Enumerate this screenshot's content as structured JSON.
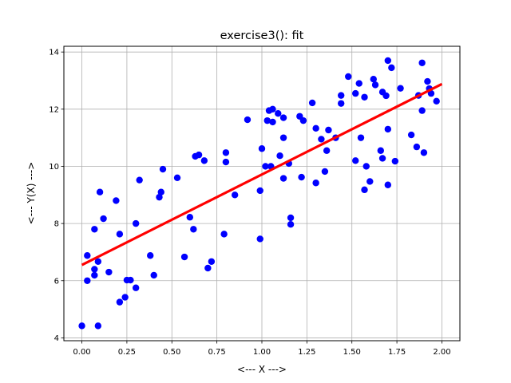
{
  "chart_data": {
    "type": "scatter",
    "title": "exercise3(): fit",
    "xlabel": "<--- X --->",
    "ylabel": "<--- Y(X) --->",
    "xlim": [
      -0.1,
      2.1
    ],
    "ylim": [
      3.9,
      14.2
    ],
    "xticks": [
      0.0,
      0.25,
      0.5,
      0.75,
      1.0,
      1.25,
      1.5,
      1.75,
      2.0
    ],
    "xtick_labels": [
      "0.00",
      "0.25",
      "0.50",
      "0.75",
      "1.00",
      "1.25",
      "1.50",
      "1.75",
      "2.00"
    ],
    "yticks": [
      4,
      6,
      8,
      10,
      12,
      14
    ],
    "ytick_labels": [
      "4",
      "6",
      "8",
      "10",
      "12",
      "14"
    ],
    "grid": true,
    "colors": {
      "points": "#0000ff",
      "fit_line": "#ff0000",
      "grid": "#b0b0b0"
    },
    "series": [
      {
        "type": "scatter",
        "points": [
          [
            0.0,
            4.42
          ],
          [
            0.03,
            6.88
          ],
          [
            0.03,
            6.0
          ],
          [
            0.07,
            6.19
          ],
          [
            0.07,
            6.4
          ],
          [
            0.07,
            7.8
          ],
          [
            0.09,
            4.42
          ],
          [
            0.09,
            6.67
          ],
          [
            0.1,
            9.1
          ],
          [
            0.12,
            8.17
          ],
          [
            0.15,
            6.3
          ],
          [
            0.19,
            8.8
          ],
          [
            0.21,
            5.25
          ],
          [
            0.21,
            7.63
          ],
          [
            0.24,
            5.42
          ],
          [
            0.25,
            6.02
          ],
          [
            0.27,
            6.02
          ],
          [
            0.3,
            5.75
          ],
          [
            0.3,
            8.0
          ],
          [
            0.32,
            9.52
          ],
          [
            0.38,
            6.88
          ],
          [
            0.4,
            6.19
          ],
          [
            0.43,
            8.92
          ],
          [
            0.44,
            9.1
          ],
          [
            0.45,
            9.9
          ],
          [
            0.53,
            9.6
          ],
          [
            0.57,
            6.83
          ],
          [
            0.6,
            8.22
          ],
          [
            0.62,
            7.8
          ],
          [
            0.63,
            10.35
          ],
          [
            0.65,
            10.4
          ],
          [
            0.68,
            10.2
          ],
          [
            0.7,
            6.44
          ],
          [
            0.72,
            6.67
          ],
          [
            0.79,
            7.63
          ],
          [
            0.8,
            10.15
          ],
          [
            0.8,
            10.48
          ],
          [
            0.85,
            9.0
          ],
          [
            0.92,
            11.63
          ],
          [
            0.99,
            7.46
          ],
          [
            0.99,
            9.15
          ],
          [
            1.0,
            10.62
          ],
          [
            1.02,
            10.0
          ],
          [
            1.03,
            11.6
          ],
          [
            1.04,
            11.95
          ],
          [
            1.05,
            10.0
          ],
          [
            1.06,
            11.55
          ],
          [
            1.06,
            12.0
          ],
          [
            1.09,
            11.85
          ],
          [
            1.1,
            10.37
          ],
          [
            1.12,
            11.7
          ],
          [
            1.12,
            11.0
          ],
          [
            1.12,
            9.58
          ],
          [
            1.15,
            10.1
          ],
          [
            1.16,
            8.2
          ],
          [
            1.16,
            7.97
          ],
          [
            1.21,
            11.75
          ],
          [
            1.22,
            9.62
          ],
          [
            1.23,
            11.6
          ],
          [
            1.28,
            12.22
          ],
          [
            1.3,
            9.42
          ],
          [
            1.3,
            11.33
          ],
          [
            1.33,
            10.95
          ],
          [
            1.35,
            9.82
          ],
          [
            1.36,
            10.55
          ],
          [
            1.37,
            11.27
          ],
          [
            1.41,
            11.0
          ],
          [
            1.44,
            12.2
          ],
          [
            1.44,
            12.48
          ],
          [
            1.48,
            13.14
          ],
          [
            1.52,
            10.2
          ],
          [
            1.52,
            12.55
          ],
          [
            1.54,
            12.9
          ],
          [
            1.55,
            11.0
          ],
          [
            1.57,
            9.18
          ],
          [
            1.57,
            12.42
          ],
          [
            1.58,
            10.0
          ],
          [
            1.6,
            9.47
          ],
          [
            1.62,
            13.05
          ],
          [
            1.63,
            12.85
          ],
          [
            1.66,
            10.55
          ],
          [
            1.67,
            10.28
          ],
          [
            1.67,
            12.6
          ],
          [
            1.69,
            12.47
          ],
          [
            1.7,
            13.7
          ],
          [
            1.7,
            11.3
          ],
          [
            1.7,
            9.35
          ],
          [
            1.72,
            13.45
          ],
          [
            1.74,
            10.18
          ],
          [
            1.77,
            12.73
          ],
          [
            1.83,
            11.1
          ],
          [
            1.86,
            10.68
          ],
          [
            1.87,
            12.48
          ],
          [
            1.89,
            13.62
          ],
          [
            1.89,
            11.95
          ],
          [
            1.9,
            10.48
          ],
          [
            1.92,
            12.97
          ],
          [
            1.93,
            12.72
          ],
          [
            1.94,
            12.55
          ],
          [
            1.97,
            12.28
          ]
        ]
      },
      {
        "type": "line",
        "x": [
          0.0,
          2.0
        ],
        "y": [
          6.55,
          12.88
        ]
      }
    ]
  }
}
